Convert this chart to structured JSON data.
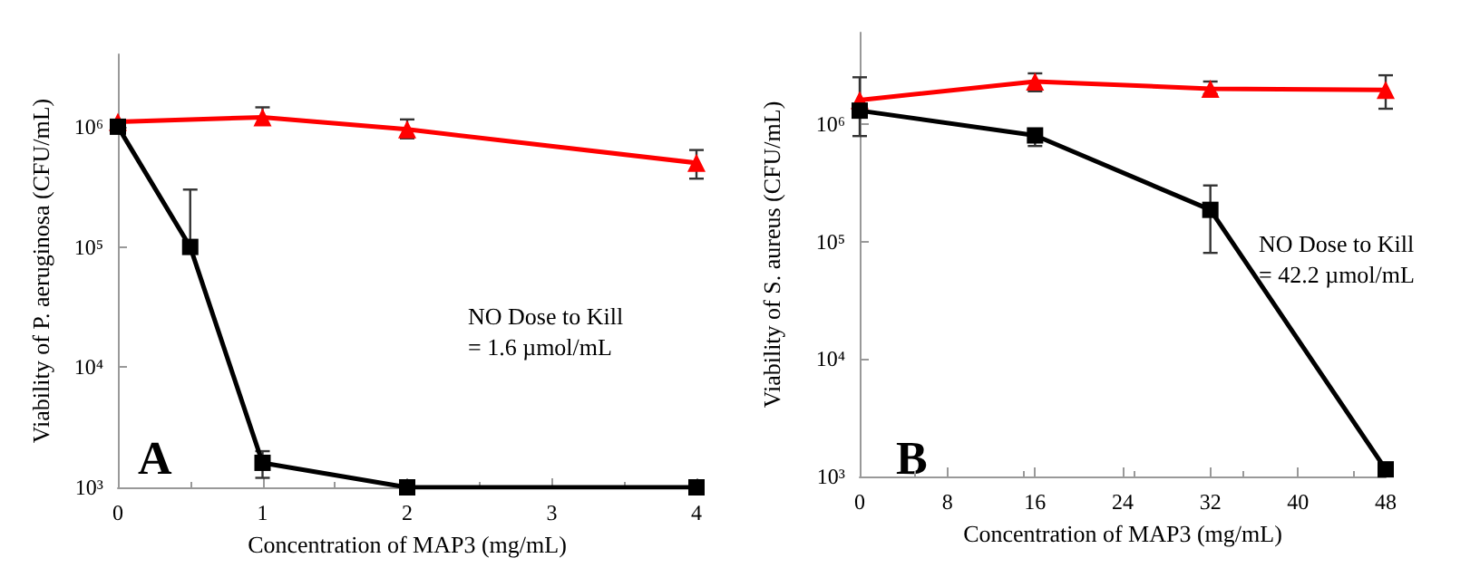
{
  "chart_data": [
    {
      "type": "line",
      "xlabel": "Concentration of MAP3 (mg/mL)",
      "ylabel": "Viability of P. aeruginosa (CFU/mL)",
      "log": "y",
      "grid": false,
      "line_style": "solid",
      "xlim": [
        0,
        4
      ],
      "xticks": [
        0,
        1,
        2,
        3,
        4
      ],
      "ylim": [
        1000,
        4000000
      ],
      "yticks": [
        {
          "value": 1000,
          "label": "10³"
        },
        {
          "value": 10000,
          "label": "10⁴"
        },
        {
          "value": 100000,
          "label": "10⁵"
        },
        {
          "value": 1000000,
          "label": "10⁶"
        }
      ],
      "annotations": [
        "A",
        "NO Dose to Kill\n= 1.6 µmol/mL"
      ],
      "series": [
        {
          "color": "#ff0000",
          "marker": "triangle",
          "x": [
            0,
            1,
            2,
            4
          ],
          "values": [
            1100000,
            1200000,
            950000,
            500000
          ],
          "errors": [
            null,
            [
              1050000,
              1450000
            ],
            [
              800000,
              1150000
            ],
            [
              370000,
              640000
            ]
          ]
        },
        {
          "color": "#000000",
          "marker": "square",
          "x": [
            0,
            0.5,
            1,
            2,
            4
          ],
          "values": [
            1000000,
            100000,
            1600,
            1000,
            1000
          ],
          "errors": [
            null,
            [
              100000,
              300000
            ],
            [
              1200,
              2000
            ],
            null,
            null
          ]
        }
      ]
    },
    {
      "type": "line",
      "xlabel": "Concentration of MAP3 (mg/mL)",
      "ylabel": "Viability of S. aureus (CFU/mL)",
      "log": "y",
      "grid": false,
      "line_style": "solid",
      "xlim": [
        0,
        48
      ],
      "xticks": [
        0,
        8,
        16,
        24,
        32,
        40,
        48
      ],
      "ylim": [
        1000,
        6000000
      ],
      "yticks": [
        {
          "value": 1000,
          "label": "10³"
        },
        {
          "value": 10000,
          "label": "10⁴"
        },
        {
          "value": 100000,
          "label": "10⁵"
        },
        {
          "value": 1000000,
          "label": "10⁶"
        }
      ],
      "annotations": [
        "B",
        "NO Dose to Kill\n= 42.2 µmol/mL"
      ],
      "series": [
        {
          "color": "#ff0000",
          "marker": "triangle",
          "x": [
            0,
            16,
            32,
            48
          ],
          "values": [
            1600000,
            2300000,
            2000000,
            1950000
          ],
          "errors": [
            [
              790000,
              2500000
            ],
            [
              1900000,
              2700000
            ],
            [
              1800000,
              2300000
            ],
            [
              1350000,
              2600000
            ]
          ]
        },
        {
          "color": "#000000",
          "marker": "square",
          "x": [
            0,
            16,
            32,
            48
          ],
          "values": [
            1300000,
            800000,
            186000,
            1150
          ],
          "errors": [
            null,
            [
              650000,
              900000
            ],
            [
              80000,
              300000
            ],
            null
          ]
        }
      ]
    }
  ]
}
